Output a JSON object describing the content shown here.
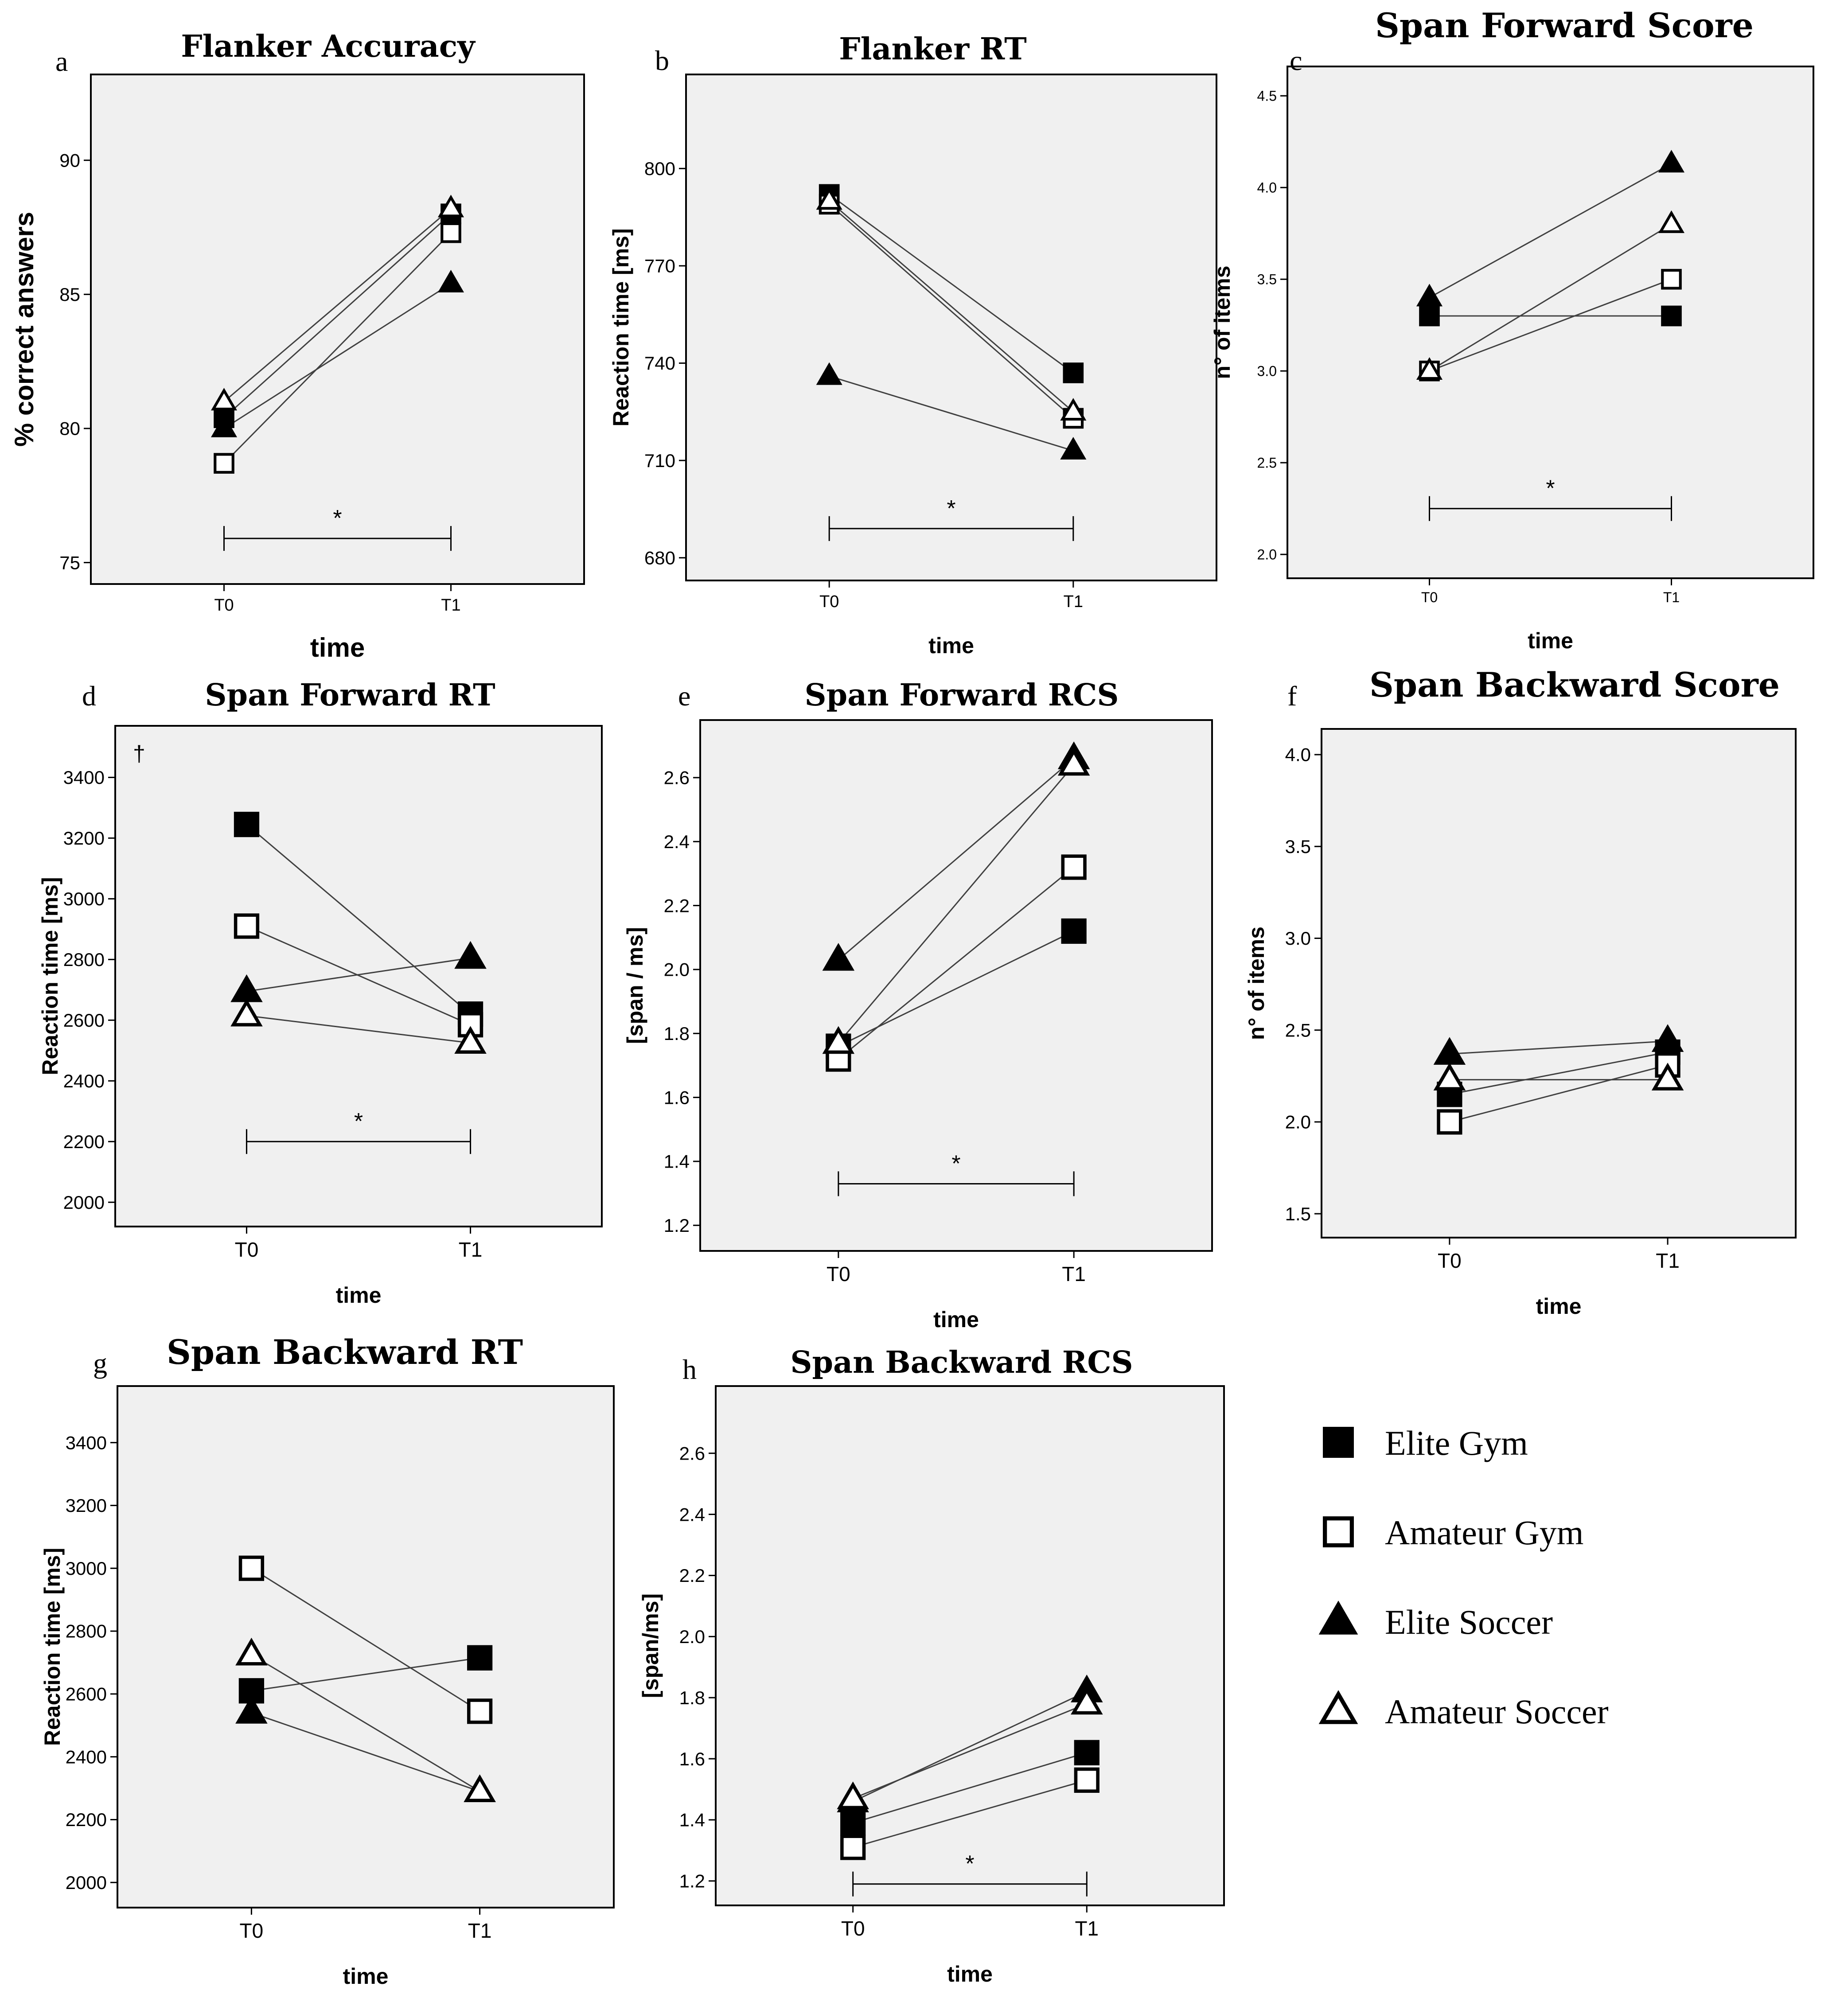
{
  "legend": {
    "items": [
      {
        "key": "elite_gym",
        "label": "Elite Gym",
        "marker": "square",
        "filled": true
      },
      {
        "key": "amateur_gym",
        "label": "Amateur Gym",
        "marker": "square",
        "filled": false
      },
      {
        "key": "elite_soccer",
        "label": "Elite Soccer",
        "marker": "triangle",
        "filled": true
      },
      {
        "key": "amateur_soccer",
        "label": "Amateur Soccer",
        "marker": "triangle",
        "filled": false
      }
    ]
  },
  "chart_data": [
    {
      "id": "a",
      "letter": "a",
      "type": "line",
      "title": "Flanker Accuracy",
      "xlabel": "time",
      "ylabel": "% correct answers",
      "categories": [
        "T0",
        "T1"
      ],
      "ylim": [
        74.2,
        93.2
      ],
      "yticks": [
        75,
        80,
        85,
        90
      ],
      "significance": {
        "label": "*",
        "value": 75.9
      },
      "series": [
        {
          "name": "Elite Gym",
          "values": [
            80.4,
            88.0
          ]
        },
        {
          "name": "Amateur Gym",
          "values": [
            78.7,
            87.3
          ]
        },
        {
          "name": "Elite Soccer",
          "values": [
            80.0,
            85.4
          ]
        },
        {
          "name": "Amateur Soccer",
          "values": [
            81.0,
            88.2
          ]
        }
      ]
    },
    {
      "id": "b",
      "letter": "b",
      "type": "line",
      "title": "Flanker RT",
      "xlabel": "time",
      "ylabel": "Reaction time [ms]",
      "categories": [
        "T0",
        "T1"
      ],
      "ylim": [
        673,
        829
      ],
      "yticks": [
        680,
        710,
        740,
        770,
        800
      ],
      "significance": {
        "label": "*",
        "value": 689
      },
      "series": [
        {
          "name": "Elite Gym",
          "values": [
            792,
            737
          ]
        },
        {
          "name": "Amateur Gym",
          "values": [
            789,
            723
          ]
        },
        {
          "name": "Elite Soccer",
          "values": [
            736,
            713
          ]
        },
        {
          "name": "Amateur Soccer",
          "values": [
            790,
            725
          ]
        }
      ]
    },
    {
      "id": "c",
      "letter": "c",
      "type": "line",
      "title": "Span Forward Score",
      "xlabel": "time",
      "ylabel": "n° of items",
      "categories": [
        "T0",
        "T1"
      ],
      "ylim": [
        1.87,
        4.66
      ],
      "yticks": [
        2.0,
        2.5,
        3.0,
        3.5,
        4.0,
        4.5
      ],
      "ytick_labels": [
        "2.0",
        "2.5",
        "3.0",
        "3.5",
        "4.0",
        "4.5"
      ],
      "significance": {
        "label": "*",
        "value": 2.25
      },
      "series": [
        {
          "name": "Elite Gym",
          "values": [
            3.3,
            3.3
          ]
        },
        {
          "name": "Amateur Gym",
          "values": [
            3.0,
            3.5
          ]
        },
        {
          "name": "Elite Soccer",
          "values": [
            3.4,
            4.13
          ]
        },
        {
          "name": "Amateur Soccer",
          "values": [
            3.0,
            3.8
          ]
        }
      ]
    },
    {
      "id": "d",
      "letter": "d",
      "type": "line",
      "title": "Span Forward RT",
      "xlabel": "time",
      "ylabel": "Reaction time [ms]",
      "annotation": "†",
      "categories": [
        "T0",
        "T1"
      ],
      "ylim": [
        1920,
        3570
      ],
      "yticks": [
        2000,
        2200,
        2400,
        2600,
        2800,
        3000,
        3200,
        3400
      ],
      "significance": {
        "label": "*",
        "value": 2200
      },
      "series": [
        {
          "name": "Elite Gym",
          "values": [
            3245,
            2620
          ]
        },
        {
          "name": "Amateur Gym",
          "values": [
            2910,
            2585
          ]
        },
        {
          "name": "Elite Soccer",
          "values": [
            2695,
            2805
          ]
        },
        {
          "name": "Amateur Soccer",
          "values": [
            2615,
            2525
          ]
        }
      ]
    },
    {
      "id": "e",
      "letter": "e",
      "type": "line",
      "title": "Span Forward RCS",
      "xlabel": "time",
      "ylabel": "[span / ms]",
      "categories": [
        "T0",
        "T1"
      ],
      "ylim": [
        1.12,
        2.78
      ],
      "yticks": [
        1.2,
        1.4,
        1.6,
        1.8,
        2.0,
        2.2,
        2.4,
        2.6
      ],
      "ytick_labels": [
        "1.2",
        "1.4",
        "1.6",
        "1.8",
        "2.0",
        "2.2",
        "2.4",
        "2.6"
      ],
      "significance": {
        "label": "*",
        "value": 1.33
      },
      "series": [
        {
          "name": "Elite Gym",
          "values": [
            1.76,
            2.12
          ]
        },
        {
          "name": "Amateur Gym",
          "values": [
            1.72,
            2.32
          ]
        },
        {
          "name": "Elite Soccer",
          "values": [
            2.03,
            2.66
          ]
        },
        {
          "name": "Amateur Soccer",
          "values": [
            1.77,
            2.64
          ]
        }
      ]
    },
    {
      "id": "f",
      "letter": "f",
      "type": "line",
      "title": "Span Backward Score",
      "xlabel": "time",
      "ylabel": "n° of items",
      "categories": [
        "T0",
        "T1"
      ],
      "ylim": [
        1.37,
        4.14
      ],
      "yticks": [
        1.5,
        2.0,
        2.5,
        3.0,
        3.5,
        4.0
      ],
      "ytick_labels": [
        "1.5",
        "2.0",
        "2.5",
        "3.0",
        "3.5",
        "4.0"
      ],
      "significance": null,
      "series": [
        {
          "name": "Elite Gym",
          "values": [
            2.15,
            2.38
          ]
        },
        {
          "name": "Amateur Gym",
          "values": [
            2.0,
            2.31
          ]
        },
        {
          "name": "Elite Soccer",
          "values": [
            2.37,
            2.44
          ]
        },
        {
          "name": "Amateur Soccer",
          "values": [
            2.23,
            2.23
          ]
        }
      ]
    },
    {
      "id": "g",
      "letter": "g",
      "type": "line",
      "title": "Span Backward RT",
      "xlabel": "time",
      "ylabel": "Reaction time [ms]",
      "categories": [
        "T0",
        "T1"
      ],
      "ylim": [
        1920,
        3580
      ],
      "yticks": [
        2000,
        2200,
        2400,
        2600,
        2800,
        3000,
        3200,
        3400
      ],
      "significance": null,
      "series": [
        {
          "name": "Elite Gym",
          "values": [
            2610,
            2715
          ]
        },
        {
          "name": "Amateur Gym",
          "values": [
            3000,
            2545
          ]
        },
        {
          "name": "Elite Soccer",
          "values": [
            2540,
            2290
          ]
        },
        {
          "name": "Amateur Soccer",
          "values": [
            2725,
            2290
          ]
        }
      ]
    },
    {
      "id": "h",
      "letter": "h",
      "type": "line",
      "title": "Span Backward RCS",
      "xlabel": "time",
      "ylabel": "[span/ms]",
      "categories": [
        "T0",
        "T1"
      ],
      "ylim": [
        1.12,
        2.82
      ],
      "yticks": [
        1.2,
        1.4,
        1.6,
        1.8,
        2.0,
        2.2,
        2.4,
        2.6
      ],
      "ytick_labels": [
        "1.2",
        "1.4",
        "1.6",
        "1.8",
        "2.0",
        "2.2",
        "2.4",
        "2.6"
      ],
      "significance": {
        "label": "*",
        "value": 1.19
      },
      "series": [
        {
          "name": "Elite Gym",
          "values": [
            1.39,
            1.62
          ]
        },
        {
          "name": "Amateur Gym",
          "values": [
            1.31,
            1.53
          ]
        },
        {
          "name": "Elite Soccer",
          "values": [
            1.46,
            1.82
          ]
        },
        {
          "name": "Amateur Soccer",
          "values": [
            1.47,
            1.78
          ]
        }
      ]
    }
  ]
}
